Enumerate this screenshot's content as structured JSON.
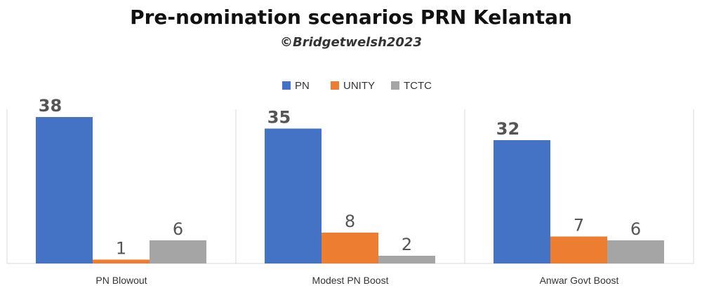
{
  "chart_data": {
    "type": "bar",
    "title": "Pre-nomination scenarios PRN Kelantan",
    "subtitle": "©Bridgetwelsh2023",
    "categories": [
      "PN Blowout",
      "Modest PN Boost",
      "Anwar Govt Boost"
    ],
    "series": [
      {
        "name": "PN",
        "values": [
          38,
          35,
          32
        ],
        "color": "#4472C4"
      },
      {
        "name": "UNITY",
        "values": [
          1,
          8,
          7
        ],
        "color": "#ED7D31"
      },
      {
        "name": "TCTC",
        "values": [
          6,
          2,
          6
        ],
        "color": "#A5A5A5"
      }
    ],
    "ylim": [
      0,
      40
    ],
    "grid": false,
    "legend_position": "top-center",
    "xlabel": "",
    "ylabel": ""
  }
}
